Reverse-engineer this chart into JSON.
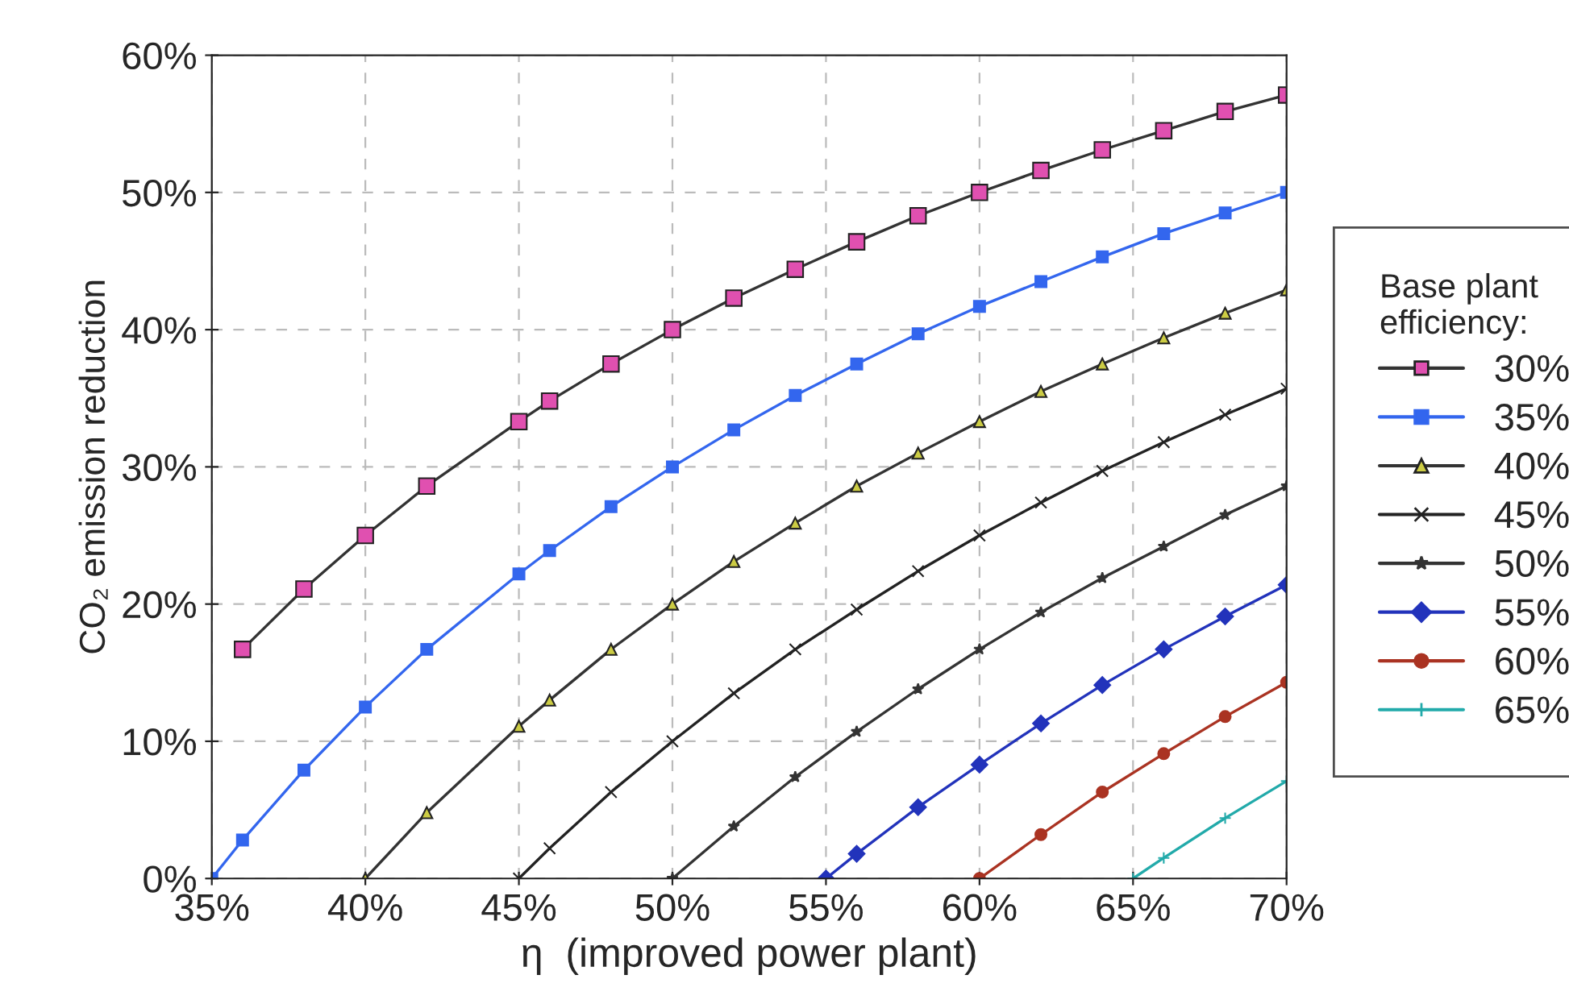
{
  "chart_data": {
    "type": "line",
    "xlabel": "η  (improved power plant)",
    "ylabel": "CO₂ emission reduction",
    "legend_title": "Base plant\nefficiency:",
    "xlim": [
      35,
      70
    ],
    "xticks": [
      {
        "value": 35,
        "label": "35%"
      },
      {
        "value": 40,
        "label": "40%"
      },
      {
        "value": 45,
        "label": "45%"
      },
      {
        "value": 50,
        "label": "50%"
      },
      {
        "value": 55,
        "label": "55%"
      },
      {
        "value": 60,
        "label": "60%"
      },
      {
        "value": 65,
        "label": "65%"
      },
      {
        "value": 70,
        "label": "70%"
      }
    ],
    "ylim": [
      0,
      60
    ],
    "yticks": [
      {
        "value": 0,
        "label": "0%"
      },
      {
        "value": 10,
        "label": "10%"
      },
      {
        "value": 20,
        "label": "20%"
      },
      {
        "value": 30,
        "label": "30%"
      },
      {
        "value": 40,
        "label": "40%"
      },
      {
        "value": 50,
        "label": "50%"
      },
      {
        "value": 60,
        "label": "60%"
      }
    ],
    "grid": true,
    "legend": "right",
    "line_style": "solid",
    "series": [
      {
        "name": "30%",
        "color": "#e050b0",
        "marker": "square",
        "x": [
          36,
          38,
          40,
          42,
          45,
          46,
          48,
          50,
          52,
          54,
          56,
          58,
          60,
          62,
          64,
          66,
          68,
          70
        ],
        "values": [
          16.7,
          21.1,
          25.0,
          28.6,
          33.3,
          34.8,
          37.5,
          40.0,
          42.3,
          44.4,
          46.4,
          48.3,
          50.0,
          51.6,
          53.1,
          54.5,
          55.9,
          57.1
        ]
      },
      {
        "name": "35%",
        "color": "#3366ee",
        "marker": "square",
        "x": [
          35,
          36,
          38,
          40,
          42,
          45,
          46,
          48,
          50,
          52,
          54,
          56,
          58,
          60,
          62,
          64,
          66,
          68,
          70
        ],
        "values": [
          0,
          2.8,
          7.9,
          12.5,
          16.7,
          22.2,
          23.9,
          27.1,
          30.0,
          32.7,
          35.2,
          37.5,
          39.7,
          41.7,
          43.5,
          45.3,
          47.0,
          48.5,
          50.0
        ]
      },
      {
        "name": "40%",
        "color": "#cccc44",
        "marker": "triangle",
        "x": [
          40,
          42,
          45,
          46,
          48,
          50,
          52,
          54,
          56,
          58,
          60,
          62,
          64,
          66,
          68,
          70
        ],
        "values": [
          0,
          4.8,
          11.1,
          13.0,
          16.7,
          20.0,
          23.1,
          25.9,
          28.6,
          31.0,
          33.3,
          35.5,
          37.5,
          39.4,
          41.2,
          42.9
        ]
      },
      {
        "name": "45%",
        "color": "#222222",
        "marker": "cross",
        "x": [
          45,
          46,
          48,
          50,
          52,
          54,
          56,
          58,
          60,
          62,
          64,
          66,
          68,
          70
        ],
        "values": [
          0,
          2.2,
          6.3,
          10.0,
          13.5,
          16.7,
          19.6,
          22.4,
          25.0,
          27.4,
          29.7,
          31.8,
          33.8,
          35.7
        ]
      },
      {
        "name": "50%",
        "color": "#333333",
        "marker": "star",
        "x": [
          50,
          52,
          54,
          56,
          58,
          60,
          62,
          64,
          66,
          68,
          70
        ],
        "values": [
          0,
          3.8,
          7.4,
          10.7,
          13.8,
          16.7,
          19.4,
          21.9,
          24.2,
          26.5,
          28.6
        ]
      },
      {
        "name": "55%",
        "color": "#2233bb",
        "marker": "diamond",
        "x": [
          55,
          56,
          58,
          60,
          62,
          64,
          66,
          68,
          70
        ],
        "values": [
          0,
          1.8,
          5.2,
          8.3,
          11.3,
          14.1,
          16.7,
          19.1,
          21.4
        ]
      },
      {
        "name": "60%",
        "color": "#aa3322",
        "marker": "circle",
        "x": [
          60,
          62,
          64,
          66,
          68,
          70
        ],
        "values": [
          0,
          3.2,
          6.3,
          9.1,
          11.8,
          14.3
        ]
      },
      {
        "name": "65%",
        "color": "#22aaaa",
        "marker": "plus",
        "x": [
          65,
          66,
          68,
          70
        ],
        "values": [
          0,
          1.5,
          4.4,
          7.1
        ]
      }
    ]
  }
}
